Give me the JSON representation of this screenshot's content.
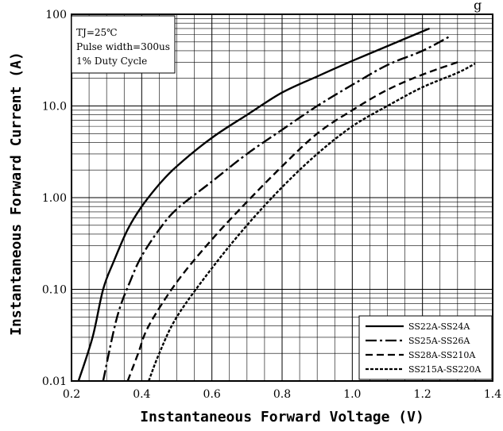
{
  "chart_data": {
    "type": "line",
    "title_fragment": "g",
    "xlabel": "Instantaneous  Forward Voltage (V)",
    "ylabel": "Instantaneous  Forward Current (A)",
    "x_axis": {
      "min": 0.2,
      "max": 1.4,
      "ticks": [
        0.2,
        0.4,
        0.6,
        0.8,
        1.0,
        1.2,
        1.4
      ],
      "tick_labels": [
        "0.2",
        "0.4",
        "0.6",
        "0.8",
        "1.0",
        "1.2",
        "1.4"
      ]
    },
    "y_axis": {
      "scale": "log",
      "min": 0.01,
      "max": 100,
      "ticks": [
        0.01,
        0.1,
        1,
        10,
        100
      ],
      "tick_labels": [
        "0.01",
        "0.10",
        "1.00",
        "10.0",
        "100"
      ]
    },
    "grid": true,
    "conditions": [
      "TJ=25℃",
      "Pulse width=300us",
      "1% Duty Cycle"
    ],
    "legend_position": "bottom-right",
    "series": [
      {
        "name": "SS22A-SS24A",
        "dash": "solid",
        "points": [
          [
            0.22,
            0.01
          ],
          [
            0.26,
            0.03
          ],
          [
            0.29,
            0.1
          ],
          [
            0.32,
            0.2
          ],
          [
            0.36,
            0.45
          ],
          [
            0.4,
            0.8
          ],
          [
            0.45,
            1.4
          ],
          [
            0.5,
            2.2
          ],
          [
            0.6,
            4.5
          ],
          [
            0.7,
            8
          ],
          [
            0.8,
            14
          ],
          [
            0.9,
            21
          ],
          [
            1.0,
            31
          ],
          [
            1.1,
            45
          ],
          [
            1.22,
            70
          ]
        ]
      },
      {
        "name": "SS25A-SS26A",
        "dash": "dash-dot",
        "points": [
          [
            0.29,
            0.01
          ],
          [
            0.33,
            0.05
          ],
          [
            0.37,
            0.13
          ],
          [
            0.4,
            0.23
          ],
          [
            0.45,
            0.45
          ],
          [
            0.5,
            0.75
          ],
          [
            0.6,
            1.5
          ],
          [
            0.7,
            3
          ],
          [
            0.8,
            5.5
          ],
          [
            0.9,
            10
          ],
          [
            1.0,
            17
          ],
          [
            1.1,
            28
          ],
          [
            1.2,
            40
          ],
          [
            1.28,
            58
          ]
        ]
      },
      {
        "name": "SS28A-SS210A",
        "dash": "dashed",
        "points": [
          [
            0.36,
            0.01
          ],
          [
            0.39,
            0.02
          ],
          [
            0.42,
            0.04
          ],
          [
            0.5,
            0.12
          ],
          [
            0.6,
            0.35
          ],
          [
            0.7,
            0.9
          ],
          [
            0.8,
            2.2
          ],
          [
            0.9,
            5
          ],
          [
            1.0,
            9
          ],
          [
            1.1,
            15
          ],
          [
            1.2,
            22
          ],
          [
            1.3,
            30
          ]
        ]
      },
      {
        "name": "SS215A-SS220A",
        "dash": "short-dash",
        "points": [
          [
            0.42,
            0.01
          ],
          [
            0.45,
            0.02
          ],
          [
            0.5,
            0.05
          ],
          [
            0.6,
            0.17
          ],
          [
            0.7,
            0.5
          ],
          [
            0.8,
            1.3
          ],
          [
            0.9,
            3
          ],
          [
            1.0,
            6
          ],
          [
            1.1,
            10
          ],
          [
            1.2,
            16
          ],
          [
            1.3,
            23
          ],
          [
            1.35,
            29
          ]
        ]
      }
    ]
  }
}
